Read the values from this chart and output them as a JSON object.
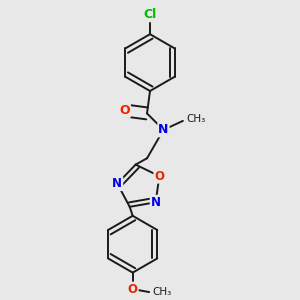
{
  "background_color": "#e8e8e8",
  "bond_color": "#1a1a1a",
  "atom_colors": {
    "Cl": "#00bb00",
    "O": "#ee2200",
    "N": "#0000ee",
    "C": "#1a1a1a"
  },
  "figsize": [
    3.0,
    3.0
  ],
  "dpi": 100
}
